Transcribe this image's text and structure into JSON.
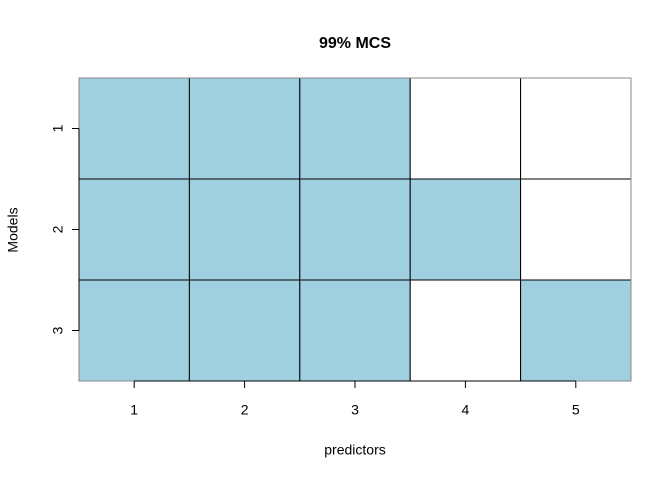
{
  "chart_data": {
    "type": "heatmap",
    "title": "99% MCS",
    "xlabel": "predictors",
    "ylabel": "Models",
    "x": [
      1,
      2,
      3,
      4,
      5
    ],
    "y": [
      1,
      2,
      3
    ],
    "values": [
      [
        1,
        1,
        1,
        0,
        0
      ],
      [
        1,
        1,
        1,
        1,
        0
      ],
      [
        1,
        1,
        1,
        0,
        1
      ]
    ],
    "colors": [
      "#ffffff",
      "#a0cfe0"
    ],
    "xlim": [
      0.5,
      5.5
    ],
    "ylim": [
      3.5,
      0.5
    ],
    "xticks": [
      1,
      2,
      3,
      4,
      5
    ],
    "yticks": [
      1,
      2,
      3
    ]
  }
}
